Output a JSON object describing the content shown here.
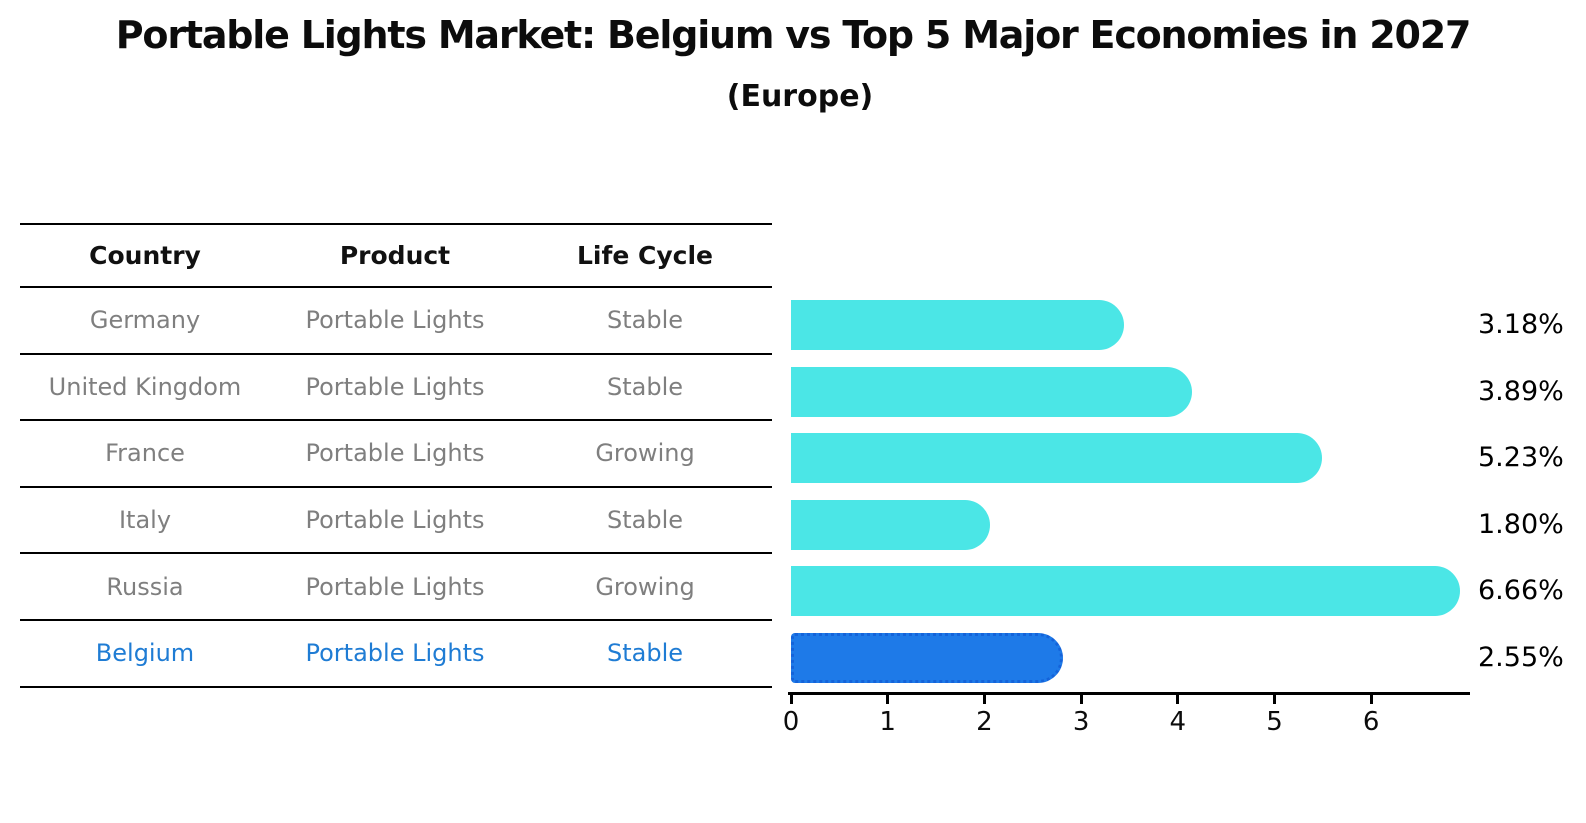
{
  "title": "Portable Lights Market: Belgium vs Top 5 Major Economies in 2027",
  "subtitle": "(Europe)",
  "table": {
    "headers": [
      "Country",
      "Product",
      "Life Cycle"
    ],
    "rows": [
      {
        "country": "Germany",
        "product": "Portable Lights",
        "life_cycle": "Stable",
        "highlight": false
      },
      {
        "country": "United Kingdom",
        "product": "Portable Lights",
        "life_cycle": "Stable",
        "highlight": false
      },
      {
        "country": "France",
        "product": "Portable Lights",
        "life_cycle": "Growing",
        "highlight": false
      },
      {
        "country": "Italy",
        "product": "Portable Lights",
        "life_cycle": "Stable",
        "highlight": false
      },
      {
        "country": "Russia",
        "product": "Portable Lights",
        "life_cycle": "Growing",
        "highlight": false
      },
      {
        "country": "Belgium",
        "product": "Portable Lights",
        "life_cycle": "Stable",
        "highlight": true
      }
    ]
  },
  "chart_data": {
    "type": "bar",
    "orientation": "horizontal",
    "title": "Portable Lights Market: Belgium vs Top 5 Major Economies in 2027 (Europe)",
    "categories": [
      "Germany",
      "United Kingdom",
      "France",
      "Italy",
      "Russia",
      "Belgium"
    ],
    "values": [
      3.18,
      3.89,
      5.23,
      1.8,
      6.66,
      2.55
    ],
    "value_labels": [
      "3.18%",
      "3.89%",
      "5.23%",
      "1.80%",
      "6.66%",
      "2.55%"
    ],
    "highlight_index": 5,
    "xlabel": "",
    "ylabel": "",
    "xlim": [
      0,
      7
    ],
    "xticks": [
      "0",
      "1",
      "2",
      "3",
      "4",
      "5",
      "6"
    ],
    "grid": false,
    "legend": "none"
  },
  "colors": {
    "bar": "#4BE6E6",
    "highlight_bar": "#1E7AE8",
    "highlight_border": "#1463DA",
    "highlight_text": "#1F7CD4",
    "row_text": "#7F7F7F",
    "header_text": "#111111",
    "axis": "#000000"
  }
}
